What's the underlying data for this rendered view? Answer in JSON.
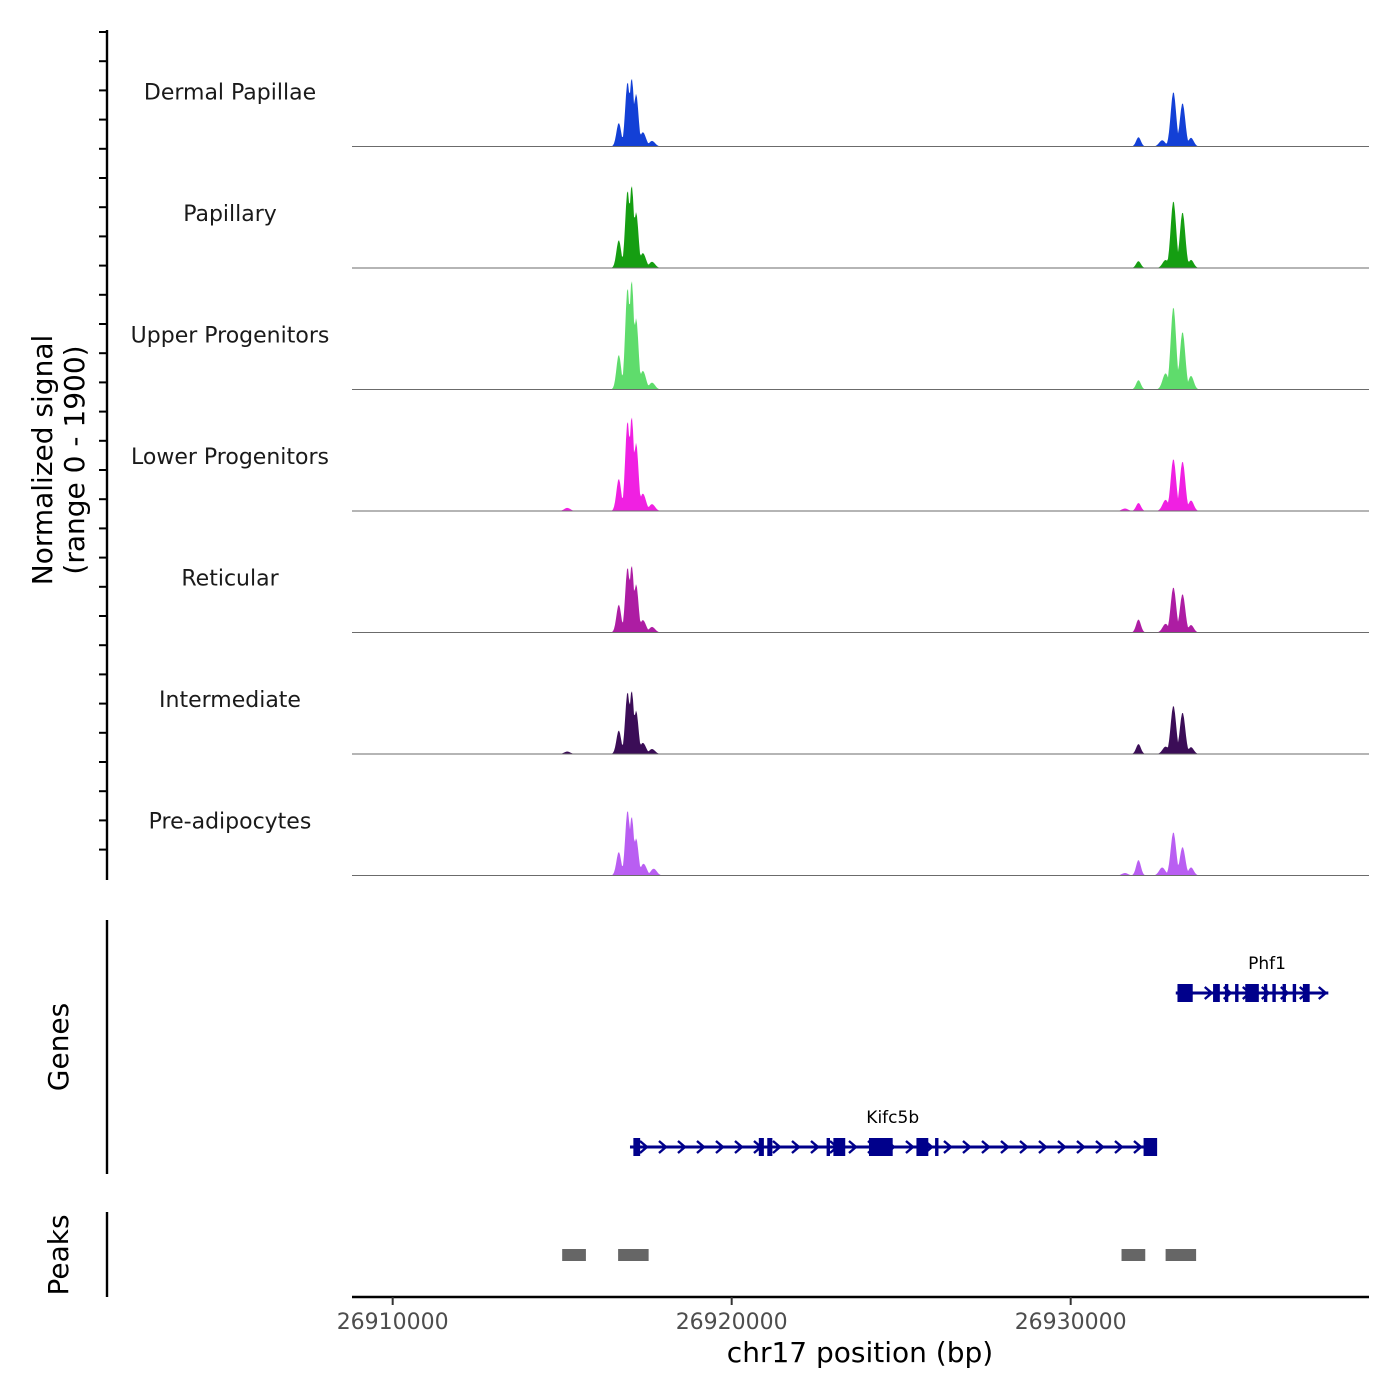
{
  "chart_data": {
    "type": "area",
    "title": "",
    "xlabel": "chr17 position (bp)",
    "ylabel": "Normalized signal",
    "ylabel_range": "(range 0 - 1900)",
    "xlim": [
      26908800,
      26938800
    ],
    "ylim": [
      0,
      1900
    ],
    "xticks": [
      26910000,
      26920000,
      26930000
    ],
    "xtick_labels": [
      "26910000",
      "26920000",
      "26930000"
    ],
    "tracks": [
      {
        "name": "Dermal Papillae",
        "color": "#1340d6",
        "peaks": [
          {
            "pos": 26916670,
            "height": 380,
            "width": 70
          },
          {
            "pos": 26916930,
            "height": 1040,
            "width": 70
          },
          {
            "pos": 26917050,
            "height": 1100,
            "width": 70
          },
          {
            "pos": 26917180,
            "height": 850,
            "width": 70
          },
          {
            "pos": 26917380,
            "height": 230,
            "width": 90
          },
          {
            "pos": 26917650,
            "height": 90,
            "width": 90
          },
          {
            "pos": 26932000,
            "height": 150,
            "width": 70
          },
          {
            "pos": 26932700,
            "height": 100,
            "width": 90
          },
          {
            "pos": 26933030,
            "height": 880,
            "width": 80
          },
          {
            "pos": 26933300,
            "height": 700,
            "width": 80
          },
          {
            "pos": 26933550,
            "height": 140,
            "width": 80
          }
        ]
      },
      {
        "name": "Papillary",
        "color": "#159e12",
        "peaks": [
          {
            "pos": 26916670,
            "height": 450,
            "width": 70
          },
          {
            "pos": 26916930,
            "height": 1250,
            "width": 70
          },
          {
            "pos": 26917050,
            "height": 1330,
            "width": 70
          },
          {
            "pos": 26917180,
            "height": 900,
            "width": 70
          },
          {
            "pos": 26917380,
            "height": 240,
            "width": 90
          },
          {
            "pos": 26917650,
            "height": 100,
            "width": 90
          },
          {
            "pos": 26932000,
            "height": 110,
            "width": 70
          },
          {
            "pos": 26932800,
            "height": 130,
            "width": 90
          },
          {
            "pos": 26933030,
            "height": 1080,
            "width": 80
          },
          {
            "pos": 26933300,
            "height": 900,
            "width": 80
          },
          {
            "pos": 26933550,
            "height": 130,
            "width": 80
          }
        ]
      },
      {
        "name": "Upper Progenitors",
        "color": "#5fdc6c",
        "peaks": [
          {
            "pos": 26916670,
            "height": 560,
            "width": 70
          },
          {
            "pos": 26916930,
            "height": 1640,
            "width": 70
          },
          {
            "pos": 26917050,
            "height": 1760,
            "width": 70
          },
          {
            "pos": 26917180,
            "height": 1150,
            "width": 70
          },
          {
            "pos": 26917380,
            "height": 300,
            "width": 90
          },
          {
            "pos": 26917650,
            "height": 110,
            "width": 90
          },
          {
            "pos": 26932000,
            "height": 150,
            "width": 70
          },
          {
            "pos": 26932800,
            "height": 260,
            "width": 90
          },
          {
            "pos": 26933030,
            "height": 1330,
            "width": 80
          },
          {
            "pos": 26933300,
            "height": 930,
            "width": 80
          },
          {
            "pos": 26933550,
            "height": 220,
            "width": 80
          }
        ]
      },
      {
        "name": "Lower Progenitors",
        "color": "#f020e2",
        "peaks": [
          {
            "pos": 26915150,
            "height": 50,
            "width": 90
          },
          {
            "pos": 26916670,
            "height": 520,
            "width": 70
          },
          {
            "pos": 26916930,
            "height": 1450,
            "width": 70
          },
          {
            "pos": 26917050,
            "height": 1520,
            "width": 70
          },
          {
            "pos": 26917180,
            "height": 1100,
            "width": 70
          },
          {
            "pos": 26917380,
            "height": 280,
            "width": 90
          },
          {
            "pos": 26917650,
            "height": 110,
            "width": 90
          },
          {
            "pos": 26931600,
            "height": 40,
            "width": 90
          },
          {
            "pos": 26932000,
            "height": 130,
            "width": 70
          },
          {
            "pos": 26932800,
            "height": 180,
            "width": 90
          },
          {
            "pos": 26933030,
            "height": 840,
            "width": 80
          },
          {
            "pos": 26933300,
            "height": 800,
            "width": 80
          },
          {
            "pos": 26933550,
            "height": 170,
            "width": 80
          }
        ]
      },
      {
        "name": "Reticular",
        "color": "#ad1da3",
        "peaks": [
          {
            "pos": 26916670,
            "height": 450,
            "width": 70
          },
          {
            "pos": 26916930,
            "height": 1050,
            "width": 70
          },
          {
            "pos": 26917050,
            "height": 1080,
            "width": 70
          },
          {
            "pos": 26917180,
            "height": 780,
            "width": 70
          },
          {
            "pos": 26917380,
            "height": 200,
            "width": 90
          },
          {
            "pos": 26917650,
            "height": 90,
            "width": 90
          },
          {
            "pos": 26932000,
            "height": 210,
            "width": 70
          },
          {
            "pos": 26932800,
            "height": 140,
            "width": 90
          },
          {
            "pos": 26933030,
            "height": 730,
            "width": 80
          },
          {
            "pos": 26933300,
            "height": 620,
            "width": 80
          },
          {
            "pos": 26933550,
            "height": 120,
            "width": 80
          }
        ]
      },
      {
        "name": "Intermediate",
        "color": "#3b0d57",
        "peaks": [
          {
            "pos": 26915150,
            "height": 40,
            "width": 90
          },
          {
            "pos": 26916670,
            "height": 380,
            "width": 70
          },
          {
            "pos": 26916930,
            "height": 1000,
            "width": 70
          },
          {
            "pos": 26917050,
            "height": 1020,
            "width": 70
          },
          {
            "pos": 26917180,
            "height": 700,
            "width": 70
          },
          {
            "pos": 26917380,
            "height": 180,
            "width": 90
          },
          {
            "pos": 26917650,
            "height": 80,
            "width": 90
          },
          {
            "pos": 26932000,
            "height": 160,
            "width": 70
          },
          {
            "pos": 26932800,
            "height": 120,
            "width": 90
          },
          {
            "pos": 26933030,
            "height": 780,
            "width": 80
          },
          {
            "pos": 26933300,
            "height": 670,
            "width": 80
          },
          {
            "pos": 26933550,
            "height": 110,
            "width": 80
          }
        ]
      },
      {
        "name": "Pre-adipocytes",
        "color": "#b95ef2",
        "peaks": [
          {
            "pos": 26916670,
            "height": 380,
            "width": 70
          },
          {
            "pos": 26916930,
            "height": 1050,
            "width": 70
          },
          {
            "pos": 26917050,
            "height": 950,
            "width": 70
          },
          {
            "pos": 26917180,
            "height": 600,
            "width": 70
          },
          {
            "pos": 26917400,
            "height": 190,
            "width": 90
          },
          {
            "pos": 26917700,
            "height": 110,
            "width": 90
          },
          {
            "pos": 26931600,
            "height": 40,
            "width": 90
          },
          {
            "pos": 26932000,
            "height": 250,
            "width": 70
          },
          {
            "pos": 26932700,
            "height": 130,
            "width": 90
          },
          {
            "pos": 26933030,
            "height": 700,
            "width": 80
          },
          {
            "pos": 26933300,
            "height": 460,
            "width": 80
          },
          {
            "pos": 26933550,
            "height": 130,
            "width": 80
          }
        ]
      }
    ],
    "genes_panel": {
      "label": "Genes",
      "color": "#00008b",
      "genes": [
        {
          "name": "Phf1",
          "start": 26933100,
          "end": 26937600,
          "strand": "+",
          "exons": [
            [
              26933150,
              26933600
            ],
            [
              26934200,
              26934400
            ],
            [
              26934550,
              26934650
            ],
            [
              26934850,
              26934950
            ],
            [
              26935150,
              26935550
            ],
            [
              26935700,
              26935800
            ],
            [
              26935950,
              26936050
            ],
            [
              26936250,
              26936350
            ],
            [
              26936550,
              26936650
            ],
            [
              26936850,
              26937050
            ]
          ]
        },
        {
          "name": "Kifc5b",
          "start": 26917000,
          "end": 26932500,
          "strand": "+",
          "exons": [
            [
              26917100,
              26917300
            ],
            [
              26920800,
              26920950
            ],
            [
              26921050,
              26921200
            ],
            [
              26922800,
              26922900
            ],
            [
              26923000,
              26923350
            ],
            [
              26924050,
              26924750
            ],
            [
              26925450,
              26925800
            ],
            [
              26926000,
              26926100
            ],
            [
              26932150,
              26932550
            ]
          ]
        }
      ]
    },
    "peaks_panel": {
      "label": "Peaks",
      "color": "#666666",
      "regions": [
        [
          26915000,
          26915700
        ],
        [
          26916650,
          26917550
        ],
        [
          26931500,
          26932200
        ],
        [
          26932800,
          26933700
        ]
      ]
    }
  }
}
